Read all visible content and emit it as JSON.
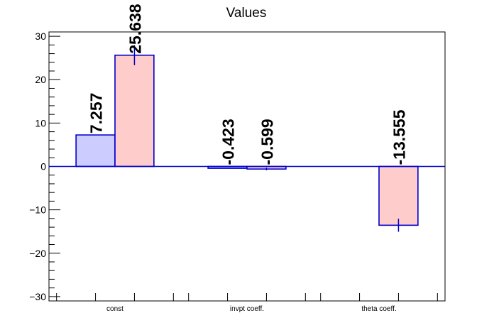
{
  "chart_data": {
    "type": "bar",
    "title": "Values",
    "categories": [
      "const",
      "invpt coeff.",
      "theta coeff."
    ],
    "series": [
      {
        "values": [
          7.257,
          -0.423,
          0
        ],
        "labels": [
          "7.257",
          "-0.423",
          ""
        ],
        "errors": [
          0,
          0,
          0
        ],
        "fill": "#ccccff",
        "stroke": "#0000cc"
      },
      {
        "values": [
          25.638,
          -0.599,
          -13.555
        ],
        "labels": [
          "25.638",
          "-0.599",
          "-13.555"
        ],
        "errors": [
          2.3,
          0.3,
          1.5
        ],
        "fill": "#ffcccc",
        "stroke": "#0000cc"
      }
    ],
    "ylim": [
      -31,
      31
    ],
    "yticks": [
      30,
      20,
      10,
      0,
      -10,
      -20,
      -30
    ],
    "ytick_labels": [
      "30",
      "20",
      "10",
      "0",
      "−10",
      "−20",
      "−30"
    ],
    "xlabel": "",
    "ylabel": "",
    "grid": false,
    "zero_line_color": "#0000cc"
  }
}
